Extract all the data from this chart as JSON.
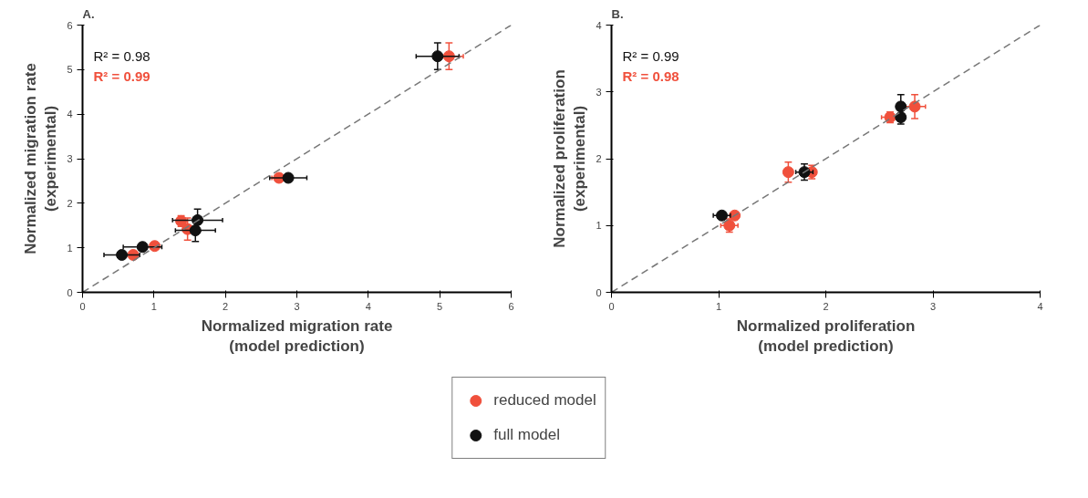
{
  "chart_data": [
    {
      "type": "scatter",
      "title": "A.",
      "xlabel": "Normalized migration rate\n(model prediction)",
      "ylabel": "Normalized migration rate\n(experimental)",
      "xlim": [
        0,
        6
      ],
      "ylim": [
        0,
        6
      ],
      "xticks": [
        0,
        1,
        2,
        3,
        4,
        5,
        6
      ],
      "yticks": [
        0,
        1,
        2,
        3,
        4,
        5,
        6
      ],
      "grid": false,
      "legend": "bottom",
      "marker": "circle",
      "annotations": [
        "R² = 0.98",
        "R² = 0.99"
      ],
      "series": [
        {
          "name": "reduced model",
          "color": "#f0503c",
          "x": [
            0.71,
            1.01,
            1.38,
            1.47,
            2.75,
            5.13
          ],
          "values": [
            0.84,
            1.04,
            1.6,
            1.42,
            2.57,
            5.3
          ],
          "errors": [
            null,
            null,
            0.12,
            0.25,
            null,
            0.3
          ],
          "xerrors": [
            null,
            null,
            null,
            null,
            0.1,
            0.2
          ]
        },
        {
          "name": "full model",
          "color": "#111111",
          "x": [
            0.55,
            0.84,
            1.61,
            1.58,
            2.88,
            4.97
          ],
          "values": [
            0.84,
            1.02,
            1.62,
            1.39,
            2.57,
            5.3
          ],
          "errors": [
            null,
            null,
            0.25,
            0.25,
            null,
            0.3
          ],
          "xerrors": [
            0.25,
            0.27,
            0.35,
            0.28,
            0.26,
            0.3
          ]
        },
        {
          "type": "line",
          "color": "#777777",
          "line_style": "dashed",
          "marker": "none",
          "x": [
            0,
            6
          ],
          "values": [
            0,
            6
          ]
        }
      ]
    },
    {
      "type": "scatter",
      "title": "B.",
      "xlabel": "Normalized proliferation\n(model prediction)",
      "ylabel": "Normalized proliferation\n(experimental)",
      "xlim": [
        0,
        4
      ],
      "ylim": [
        0,
        4
      ],
      "xticks": [
        0,
        1,
        2,
        3,
        4
      ],
      "yticks": [
        0,
        1,
        2,
        3,
        4
      ],
      "grid": false,
      "marker": "circle",
      "annotations": [
        "R² = 0.99",
        "R² = 0.98"
      ],
      "series": [
        {
          "color": "#f0503c",
          "x": [
            1.1,
            1.15,
            1.65,
            1.87,
            2.6,
            2.83
          ],
          "values": [
            1.0,
            1.15,
            1.8,
            1.8,
            2.62,
            2.78
          ],
          "errors": [
            0.1,
            null,
            0.15,
            0.1,
            0.08,
            0.18
          ],
          "xerrors": [
            0.08,
            null,
            null,
            null,
            0.08,
            0.1
          ]
        },
        {
          "color": "#111111",
          "x": [
            1.03,
            1.8,
            2.7,
            2.7
          ],
          "values": [
            1.15,
            1.8,
            2.62,
            2.78
          ],
          "errors": [
            null,
            0.12,
            0.1,
            0.18
          ],
          "xerrors": [
            0.08,
            0.08,
            null,
            null
          ]
        },
        {
          "type": "line",
          "color": "#777777",
          "line_style": "dashed",
          "marker": "none",
          "x": [
            0,
            4
          ],
          "values": [
            0,
            4
          ]
        }
      ]
    }
  ]
}
